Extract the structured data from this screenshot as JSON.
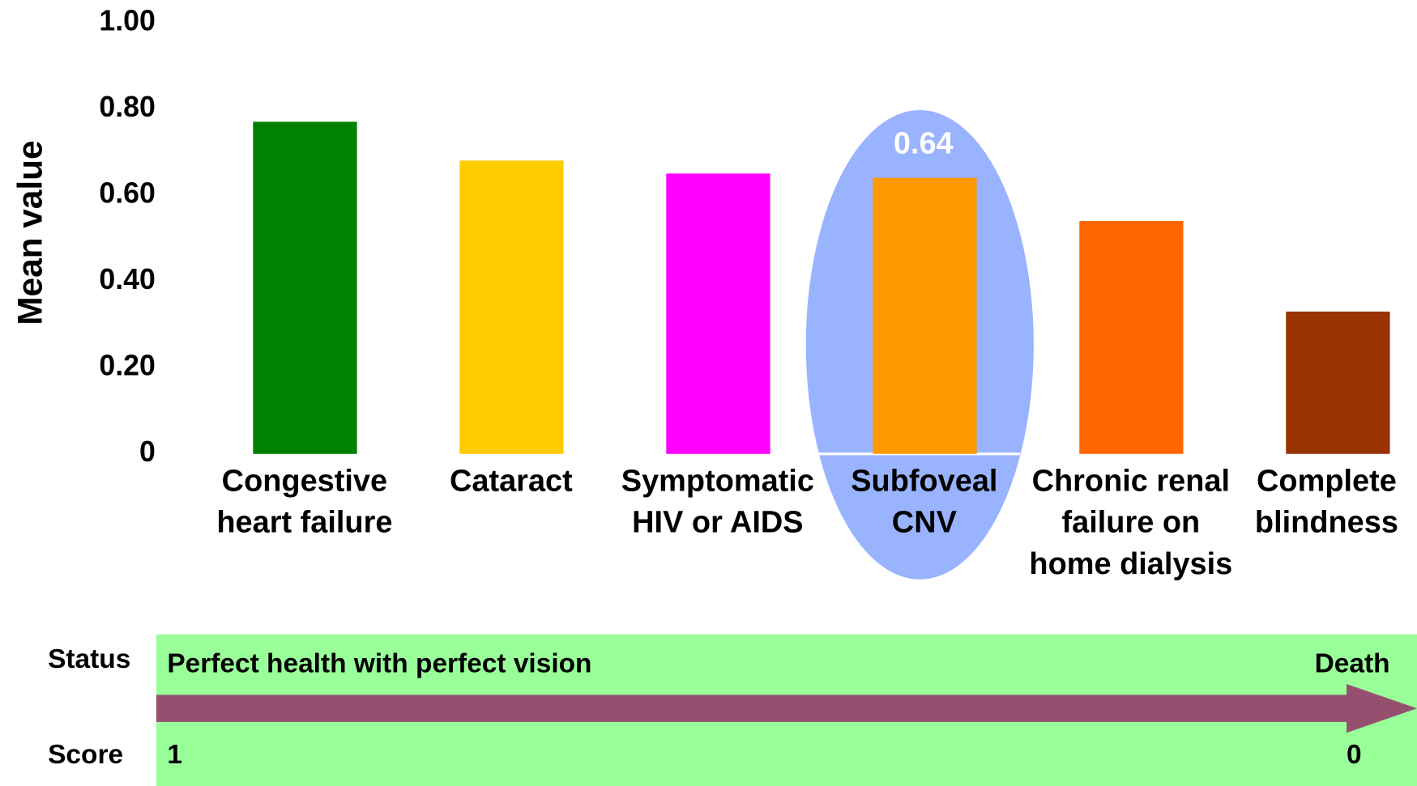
{
  "chart_data": {
    "type": "bar",
    "ylabel": "Mean value",
    "categories": [
      "Congestive heart failure",
      "Cataract",
      "Symptomatic HIV or AIDS",
      "Subfoveal CNV",
      "Chronic renal failure on home dialysis",
      "Complete blindness"
    ],
    "values": [
      0.77,
      0.68,
      0.65,
      0.64,
      0.54,
      0.33
    ],
    "colors": [
      "#008000",
      "#ffcc00",
      "#ff00ff",
      "#ff9900",
      "#ff6600",
      "#993300"
    ],
    "highlight_color": "#99b3ff",
    "ylim": [
      0,
      1
    ],
    "yticks": [
      0,
      {
        "value": 0.2,
        "label": "0.20"
      },
      {
        "value": 0.4,
        "label": "0.40"
      },
      {
        "value": 0.6,
        "label": "0.60"
      },
      {
        "value": 0.8,
        "label": "0.80"
      },
      {
        "value": 1,
        "label": "1.00"
      }
    ],
    "grid": false
  },
  "scale": {
    "status_label": "Status",
    "score_label": "Score",
    "start_status": "Perfect health with perfect vision",
    "end_status": "Death",
    "start_score": 1,
    "end_score": 0,
    "band_color": "#99ff99",
    "arrow_color": "#955070"
  }
}
